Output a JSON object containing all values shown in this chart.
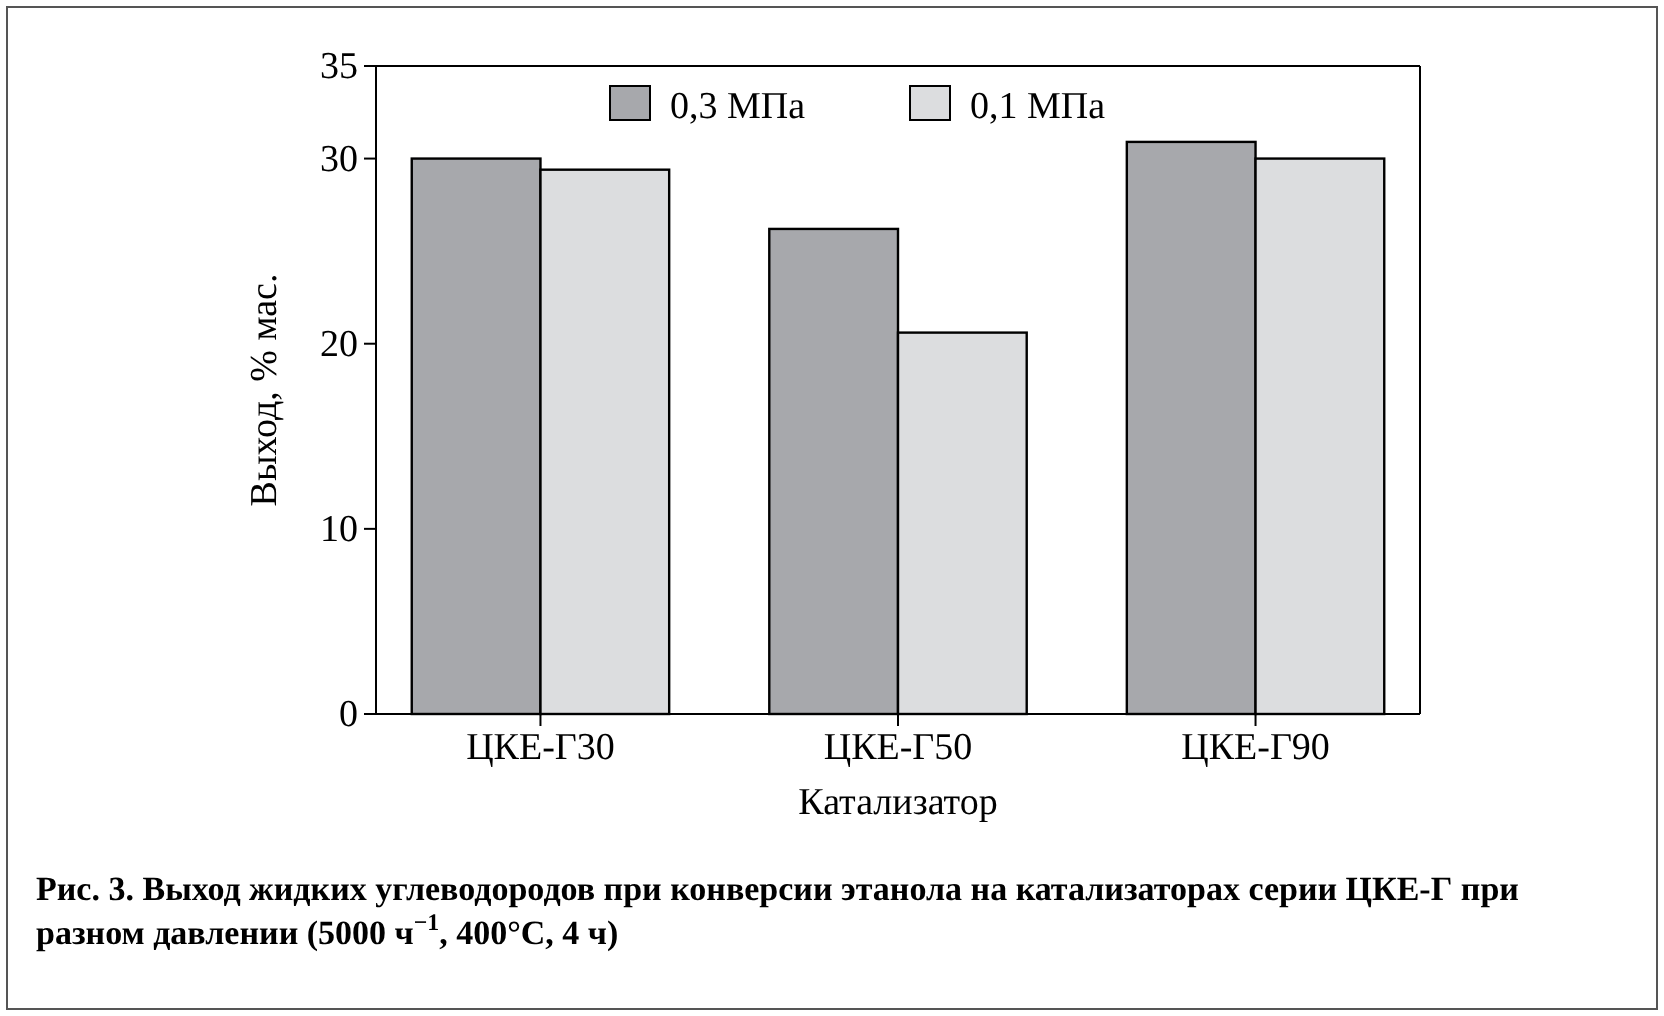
{
  "chart_data": {
    "type": "bar",
    "xlabel": "Катализатор",
    "ylabel": "Выход, % мас.",
    "categories": [
      "ЦКЕ-Г30",
      "ЦКЕ-Г50",
      "ЦКЕ-Г90"
    ],
    "series": [
      {
        "name": "0,3 МПа",
        "color": "#a7a8ac",
        "values": [
          30.0,
          26.2,
          30.9
        ]
      },
      {
        "name": "0,1 МПа",
        "color": "#dcdddf",
        "values": [
          29.4,
          20.6,
          30.0
        ]
      }
    ],
    "ylim": [
      0,
      35
    ],
    "yticks": [
      0,
      10,
      20,
      30,
      35
    ],
    "grid": false,
    "legend": "top",
    "annotations": [
      "Рис. 3. Выход жидких углеводородов при конверсии этанола на катализаторах серии ЦКЕ-Г при разном давлении (5000 ч$^{−1}$, 400°C, 4 ч)"
    ]
  }
}
